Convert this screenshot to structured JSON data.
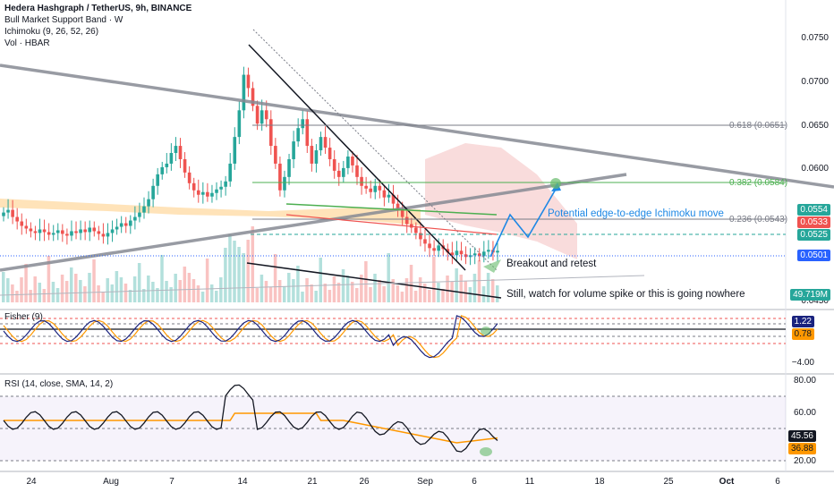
{
  "legend": {
    "symbol": "Hedera Hashgraph / TetherUS, 9h, BINANCE",
    "ind1": "Bull Market Support Band · W",
    "ind2": "Ichimoku (9, 26, 52, 26)",
    "ind3": "Vol · HBAR"
  },
  "panes": {
    "fisher_label": "Fisher (9)",
    "rsi_label": "RSI (14, close, SMA, 14, 2)"
  },
  "price_axis": [
    "0.0750",
    "0.0700",
    "0.0650",
    "0.0600",
    "0.0450"
  ],
  "badges": {
    "p1": {
      "text": "0.0554",
      "color": "#26a69a"
    },
    "p2": {
      "text": "0.0533",
      "color": "#ef5350"
    },
    "p3": {
      "text": "0.0525",
      "color": "#26a69a"
    },
    "p4": {
      "text": "0.0501",
      "color": "#2962ff"
    },
    "vol": {
      "text": "49.719M",
      "color": "#26a69a"
    }
  },
  "fisher_axis": {
    "badge1": "1.22",
    "badge2": "0.78",
    "tick": "−4.00"
  },
  "rsi_axis": {
    "t80": "80.00",
    "t60": "60.00",
    "badge1": "45.56",
    "badge2": "36.88",
    "t20": "20.00"
  },
  "x_axis": [
    "24",
    "Aug",
    "7",
    "14",
    "21",
    "26",
    "Sep",
    "6",
    "11",
    "18",
    "25",
    "Oct",
    "6"
  ],
  "fib": {
    "f618": "0.618 (0.0651)",
    "f382": "0.382 (0.0584)",
    "f236": "0.236 (0.0543)"
  },
  "notes": {
    "ichimoku": "Potential edge-to-edge Ichimoku move",
    "breakout": "Breakout and retest",
    "volume": "Still, watch for volume spike or this is going nowhere"
  },
  "colors": {
    "up": "#26a69a",
    "down": "#ef5350",
    "accent": "#2962ff",
    "trend": "#868993",
    "arrow": "#1e88e5",
    "rsi_line": "#131722",
    "rsi_ma": "#ff9800"
  },
  "chart_data": {
    "type": "candlestick",
    "title": "Hedera Hashgraph / TetherUS, 9h, BINANCE",
    "ylim": [
      0.045,
      0.077
    ],
    "x_ticks": [
      "24",
      "Aug",
      "7",
      "14",
      "21",
      "26",
      "Sep",
      "6",
      "11",
      "18",
      "25",
      "Oct",
      "6"
    ],
    "close": [
      0.0545,
      0.0548,
      0.054,
      0.0535,
      0.053,
      0.0527,
      0.0524,
      0.0522,
      0.0526,
      0.0523,
      0.052,
      0.0522,
      0.0525,
      0.0521,
      0.0519,
      0.0524,
      0.0522,
      0.0526,
      0.0523,
      0.0528,
      0.0524,
      0.0521,
      0.0518,
      0.0522,
      0.0526,
      0.0529,
      0.0533,
      0.053,
      0.0536,
      0.054,
      0.0545,
      0.0552,
      0.056,
      0.0575,
      0.0588,
      0.0596,
      0.06,
      0.0612,
      0.062,
      0.0605,
      0.059,
      0.0578,
      0.057,
      0.0565,
      0.0568,
      0.0563,
      0.0567,
      0.0571,
      0.0574,
      0.058,
      0.06,
      0.063,
      0.066,
      0.07,
      0.0685,
      0.0665,
      0.0645,
      0.066,
      0.065,
      0.062,
      0.06,
      0.057,
      0.0585,
      0.0605,
      0.0625,
      0.064,
      0.065,
      0.062,
      0.06,
      0.0615,
      0.063,
      0.0618,
      0.0605,
      0.0592,
      0.0585,
      0.0595,
      0.0608,
      0.0598,
      0.0585,
      0.0575,
      0.0572,
      0.0568,
      0.0575,
      0.057,
      0.0562,
      0.0565,
      0.0555,
      0.0548,
      0.054,
      0.0532,
      0.0528,
      0.0522,
      0.0515,
      0.051,
      0.0505,
      0.0502,
      0.0508,
      0.0504,
      0.05,
      0.0497,
      0.0502,
      0.0498,
      0.0495,
      0.0497,
      0.0499,
      0.0496,
      0.0501,
      0.0503,
      0.05,
      0.0502
    ],
    "volume_note": "volume bars, last 49.719M",
    "fisher": {
      "levels": [
        1.5,
        0.75,
        -0.75,
        -1.5
      ],
      "last": 1.22,
      "trigger": 0.78,
      "ytick": -4.0
    },
    "rsi": {
      "levels": [
        80,
        60,
        40,
        20
      ],
      "last": 45.56,
      "ma": 36.88
    },
    "fib_levels": [
      {
        "label": "0.618",
        "value": 0.0651
      },
      {
        "label": "0.382",
        "value": 0.0584
      },
      {
        "label": "0.236",
        "value": 0.0543
      }
    ],
    "marked_levels": [
      0.0554,
      0.0533,
      0.0525,
      0.0501
    ]
  }
}
